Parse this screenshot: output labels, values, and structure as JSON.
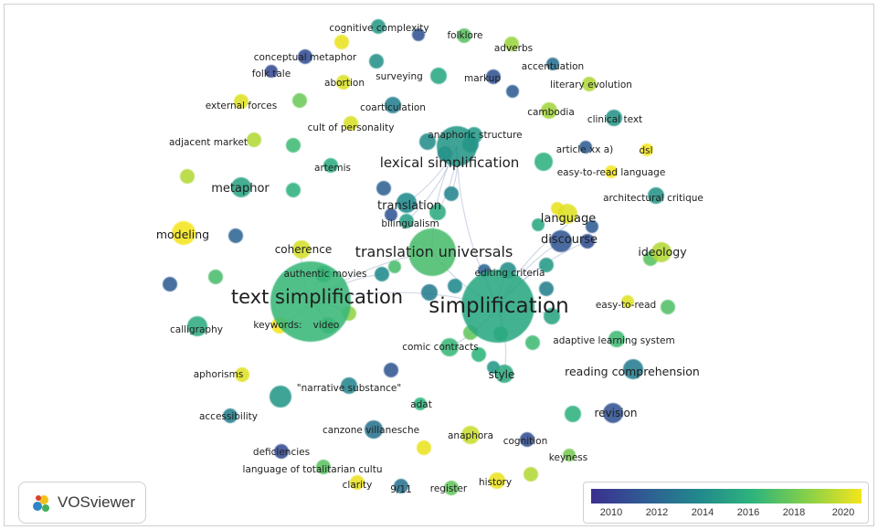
{
  "app": {
    "name": "VOSviewer"
  },
  "legend": {
    "ticks": [
      "2010",
      "2012",
      "2014",
      "2016",
      "2018",
      "2020"
    ],
    "colors": [
      "#3b2f8f",
      "#2f5c93",
      "#21898c",
      "#2fb47c",
      "#86d048",
      "#f5e51c"
    ]
  },
  "clusters": [
    {
      "label": "text simplification",
      "year": 2016.2,
      "size": "xl"
    },
    {
      "label": "simplification",
      "year": 2015.4,
      "size": "xl"
    },
    {
      "label": "translation universals",
      "year": 2016.6,
      "size": "lg"
    },
    {
      "label": "lexical simplification",
      "year": 2014.6,
      "size": "lg"
    }
  ],
  "keywords": [
    "cognitive complexity",
    "folklore",
    "adverbs",
    "conceptual metaphor",
    "accentuation",
    "folk tale",
    "surveying",
    "markup",
    "abortion",
    "literary evolution",
    "external forces",
    "coarticulation",
    "cambodia",
    "cult of personality",
    "clinical text",
    "adjacent market",
    "anaphoric structure",
    "article xx a)",
    "dsl",
    "artemis",
    "easy-to-read language",
    "metaphor",
    "architectural critique",
    "translation",
    "bilingualism",
    "language",
    "modeling",
    "discourse",
    "ideology",
    "coherence",
    "authentic movies",
    "editing criteria",
    "easy-to-read",
    "calligraphy",
    "keywords:",
    "video",
    "comic contracts",
    "adaptive learning system",
    "style",
    "reading comprehension",
    "aphorisms",
    "\"narrative substance\"",
    "adat",
    "accessibility",
    "revision",
    "canzone villanesche",
    "anaphora",
    "cognition",
    "deficiencies",
    "keyness",
    "language of totalitarian cultu",
    "clarity",
    "9/11",
    "register",
    "history"
  ]
}
